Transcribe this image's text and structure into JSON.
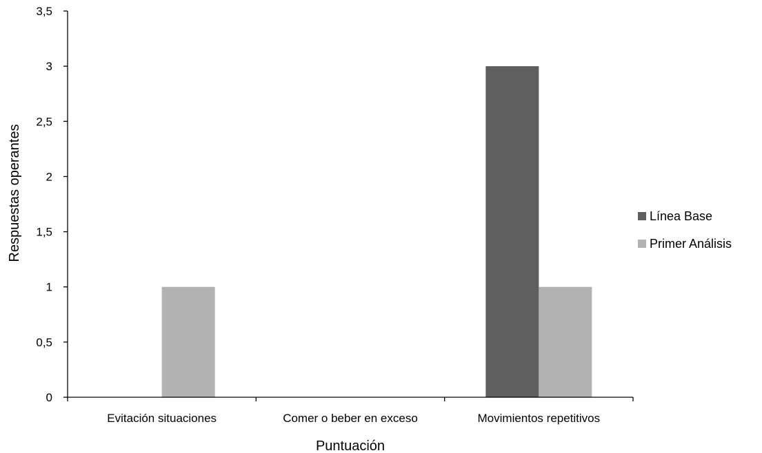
{
  "chart_data": {
    "type": "bar",
    "title": "",
    "xlabel": "Puntuación",
    "ylabel": "Respuestas operantes",
    "categories": [
      "Evitación situaciones",
      "Comer o beber en exceso",
      "Movimientos repetitivos"
    ],
    "series": [
      {
        "name": "Línea Base",
        "color": "#5f5f5f",
        "values": [
          0,
          0,
          3
        ]
      },
      {
        "name": "Primer Análisis",
        "color": "#b2b2b2",
        "values": [
          1,
          0,
          1
        ]
      }
    ],
    "ylim": [
      0,
      3.5
    ],
    "yticks": [
      "0",
      "0,5",
      "1",
      "1,5",
      "2",
      "2,5",
      "3",
      "3,5"
    ],
    "ytick_values": [
      0,
      0.5,
      1,
      1.5,
      2,
      2.5,
      3,
      3.5
    ],
    "grid": false,
    "legend_position": "right"
  }
}
